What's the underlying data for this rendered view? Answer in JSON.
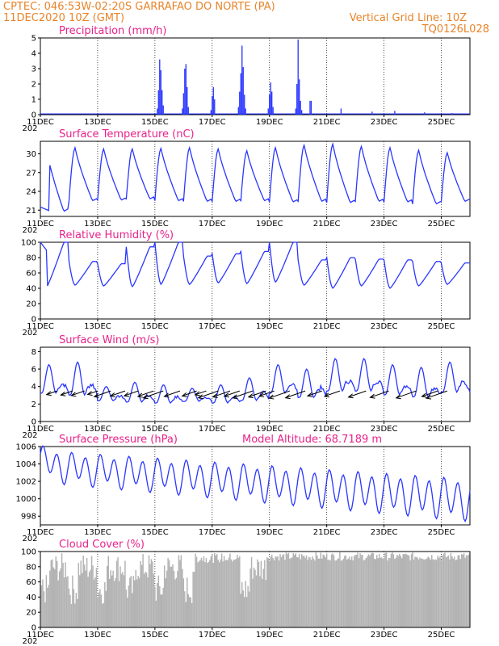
{
  "header": {
    "line1": "CPTEC:   046:53W-02:20S   GARRAFAO DO NORTE (PA)",
    "line2_left": "11DEC2020 10Z (GMT)",
    "line2_right": "Vertical Grid Line: 10Z",
    "line3_right": "TQ0126L028"
  },
  "colors": {
    "series": "#2a36ff",
    "cloud": "#b3b3b3",
    "header": "#e8842a",
    "title": "#e8228a"
  },
  "x_labels": [
    "11DEC",
    "13DEC",
    "15DEC",
    "17DEC",
    "19DEC",
    "21DEC",
    "23DEC",
    "25DEC"
  ],
  "year_fragment": "202",
  "chart_data": [
    {
      "type": "bar",
      "title": "Precipitation (mm/h)",
      "ylim": [
        0,
        5
      ],
      "yticks": [
        "0",
        "1",
        "2",
        "3",
        "4",
        "5"
      ],
      "x_unit": "hours since 11DEC 10Z",
      "bars": [
        [
          98,
          0.4
        ],
        [
          99,
          1.6
        ],
        [
          100,
          3.6
        ],
        [
          101,
          2.9
        ],
        [
          102,
          1.6
        ],
        [
          103,
          0.6
        ],
        [
          119,
          0.4
        ],
        [
          120,
          1.4
        ],
        [
          121,
          3.0
        ],
        [
          122,
          3.3
        ],
        [
          123,
          1.8
        ],
        [
          124,
          0.5
        ],
        [
          143,
          0.3
        ],
        [
          144,
          1.2
        ],
        [
          145,
          1.8
        ],
        [
          146,
          1.0
        ],
        [
          166,
          0.5
        ],
        [
          167,
          1.5
        ],
        [
          168,
          2.7
        ],
        [
          169,
          4.5
        ],
        [
          170,
          3.1
        ],
        [
          171,
          1.3
        ],
        [
          172,
          0.4
        ],
        [
          191,
          0.4
        ],
        [
          192,
          1.3
        ],
        [
          193,
          2.1
        ],
        [
          194,
          1.5
        ],
        [
          195,
          0.5
        ],
        [
          214,
          0.4
        ],
        [
          215,
          2.0
        ],
        [
          216,
          4.9
        ],
        [
          217,
          2.3
        ],
        [
          218,
          0.9
        ],
        [
          219,
          0.3
        ],
        [
          226,
          0.9
        ],
        [
          227,
          0.9
        ],
        [
          252,
          0.4
        ],
        [
          278,
          0.2
        ],
        [
          297,
          0.25
        ],
        [
          322,
          0.15
        ],
        [
          345,
          0.1
        ]
      ]
    },
    {
      "type": "line",
      "title": "Surface Temperature (nC)",
      "ylim": [
        20,
        32
      ],
      "yticks": [
        "21",
        "24",
        "27",
        "30"
      ],
      "ytick_values": [
        21,
        24,
        27,
        30
      ],
      "daily_min": [
        20.8,
        22.5,
        22.6,
        22.8,
        22.5,
        22.4,
        22.4,
        22.5,
        22.3,
        22.4,
        22.2,
        22.4,
        22.3,
        22.0,
        22.4
      ],
      "daily_max": [
        30.8,
        31.0,
        30.8,
        30.8,
        30.9,
        31.0,
        30.8,
        30.5,
        31.0,
        31.4,
        31.6,
        31.2,
        31.0,
        30.6,
        30.2
      ]
    },
    {
      "type": "line",
      "title": "Relative Humidity (%)",
      "ylim": [
        0,
        100
      ],
      "yticks": [
        "0",
        "20",
        "40",
        "60",
        "80",
        "100"
      ],
      "ytick_values": [
        0,
        20,
        40,
        60,
        80,
        100
      ],
      "daily_min": [
        41,
        44,
        43,
        42,
        45,
        45,
        47,
        46,
        48,
        44,
        40,
        43,
        40,
        43,
        45
      ],
      "daily_max": [
        100,
        75,
        72,
        94,
        100,
        82,
        85,
        88,
        100,
        77,
        80,
        78,
        77,
        75,
        73
      ]
    },
    {
      "type": "line",
      "title": "Surface Wind (m/s)",
      "ylim": [
        0,
        8.5
      ],
      "yticks": [
        "0",
        "2",
        "4",
        "6",
        "8"
      ],
      "ytick_values": [
        0,
        2,
        4,
        6,
        8
      ],
      "daily_min": [
        1.5,
        1.0,
        1.5,
        1.0,
        1.0,
        1.5,
        1.0,
        1.0,
        1.5,
        1.0,
        1.5,
        1.5,
        1.2,
        1.0,
        1.5
      ],
      "daily_max": [
        6.5,
        6.8,
        4.0,
        4.5,
        4.2,
        3.8,
        4.2,
        5.0,
        6.5,
        6.0,
        7.2,
        7.2,
        6.5,
        6.2,
        6.8
      ],
      "arrow_hours": [
        14,
        27,
        37,
        48,
        59,
        71,
        82,
        95,
        103,
        117,
        131,
        139,
        149,
        159,
        167,
        178,
        189,
        196,
        209,
        222,
        236,
        251,
        273,
        292,
        315,
        333,
        341
      ],
      "arrow_direction": "from east-northeast"
    },
    {
      "type": "line",
      "title": "Surface Pressure (hPa)",
      "annotation": "Model Altitude: 68.7189 m",
      "ylim": [
        997,
        1006
      ],
      "yticks": [
        "998",
        "1000",
        "1002",
        "1004",
        "1006"
      ],
      "ytick_values": [
        998,
        1000,
        1002,
        1004,
        1006
      ],
      "trend_start": 1003.8,
      "trend_end": 999.9,
      "semidiurnal_amplitude": 1.5
    },
    {
      "type": "area",
      "title": "Cloud Cover (%)",
      "ylim": [
        0,
        100
      ],
      "yticks": [
        "0",
        "20",
        "40",
        "60",
        "80",
        "100"
      ],
      "ytick_values": [
        0,
        20,
        40,
        60,
        80,
        100
      ],
      "description_mean": "varies 20-95 early, near 95-99 after 19DEC"
    }
  ]
}
